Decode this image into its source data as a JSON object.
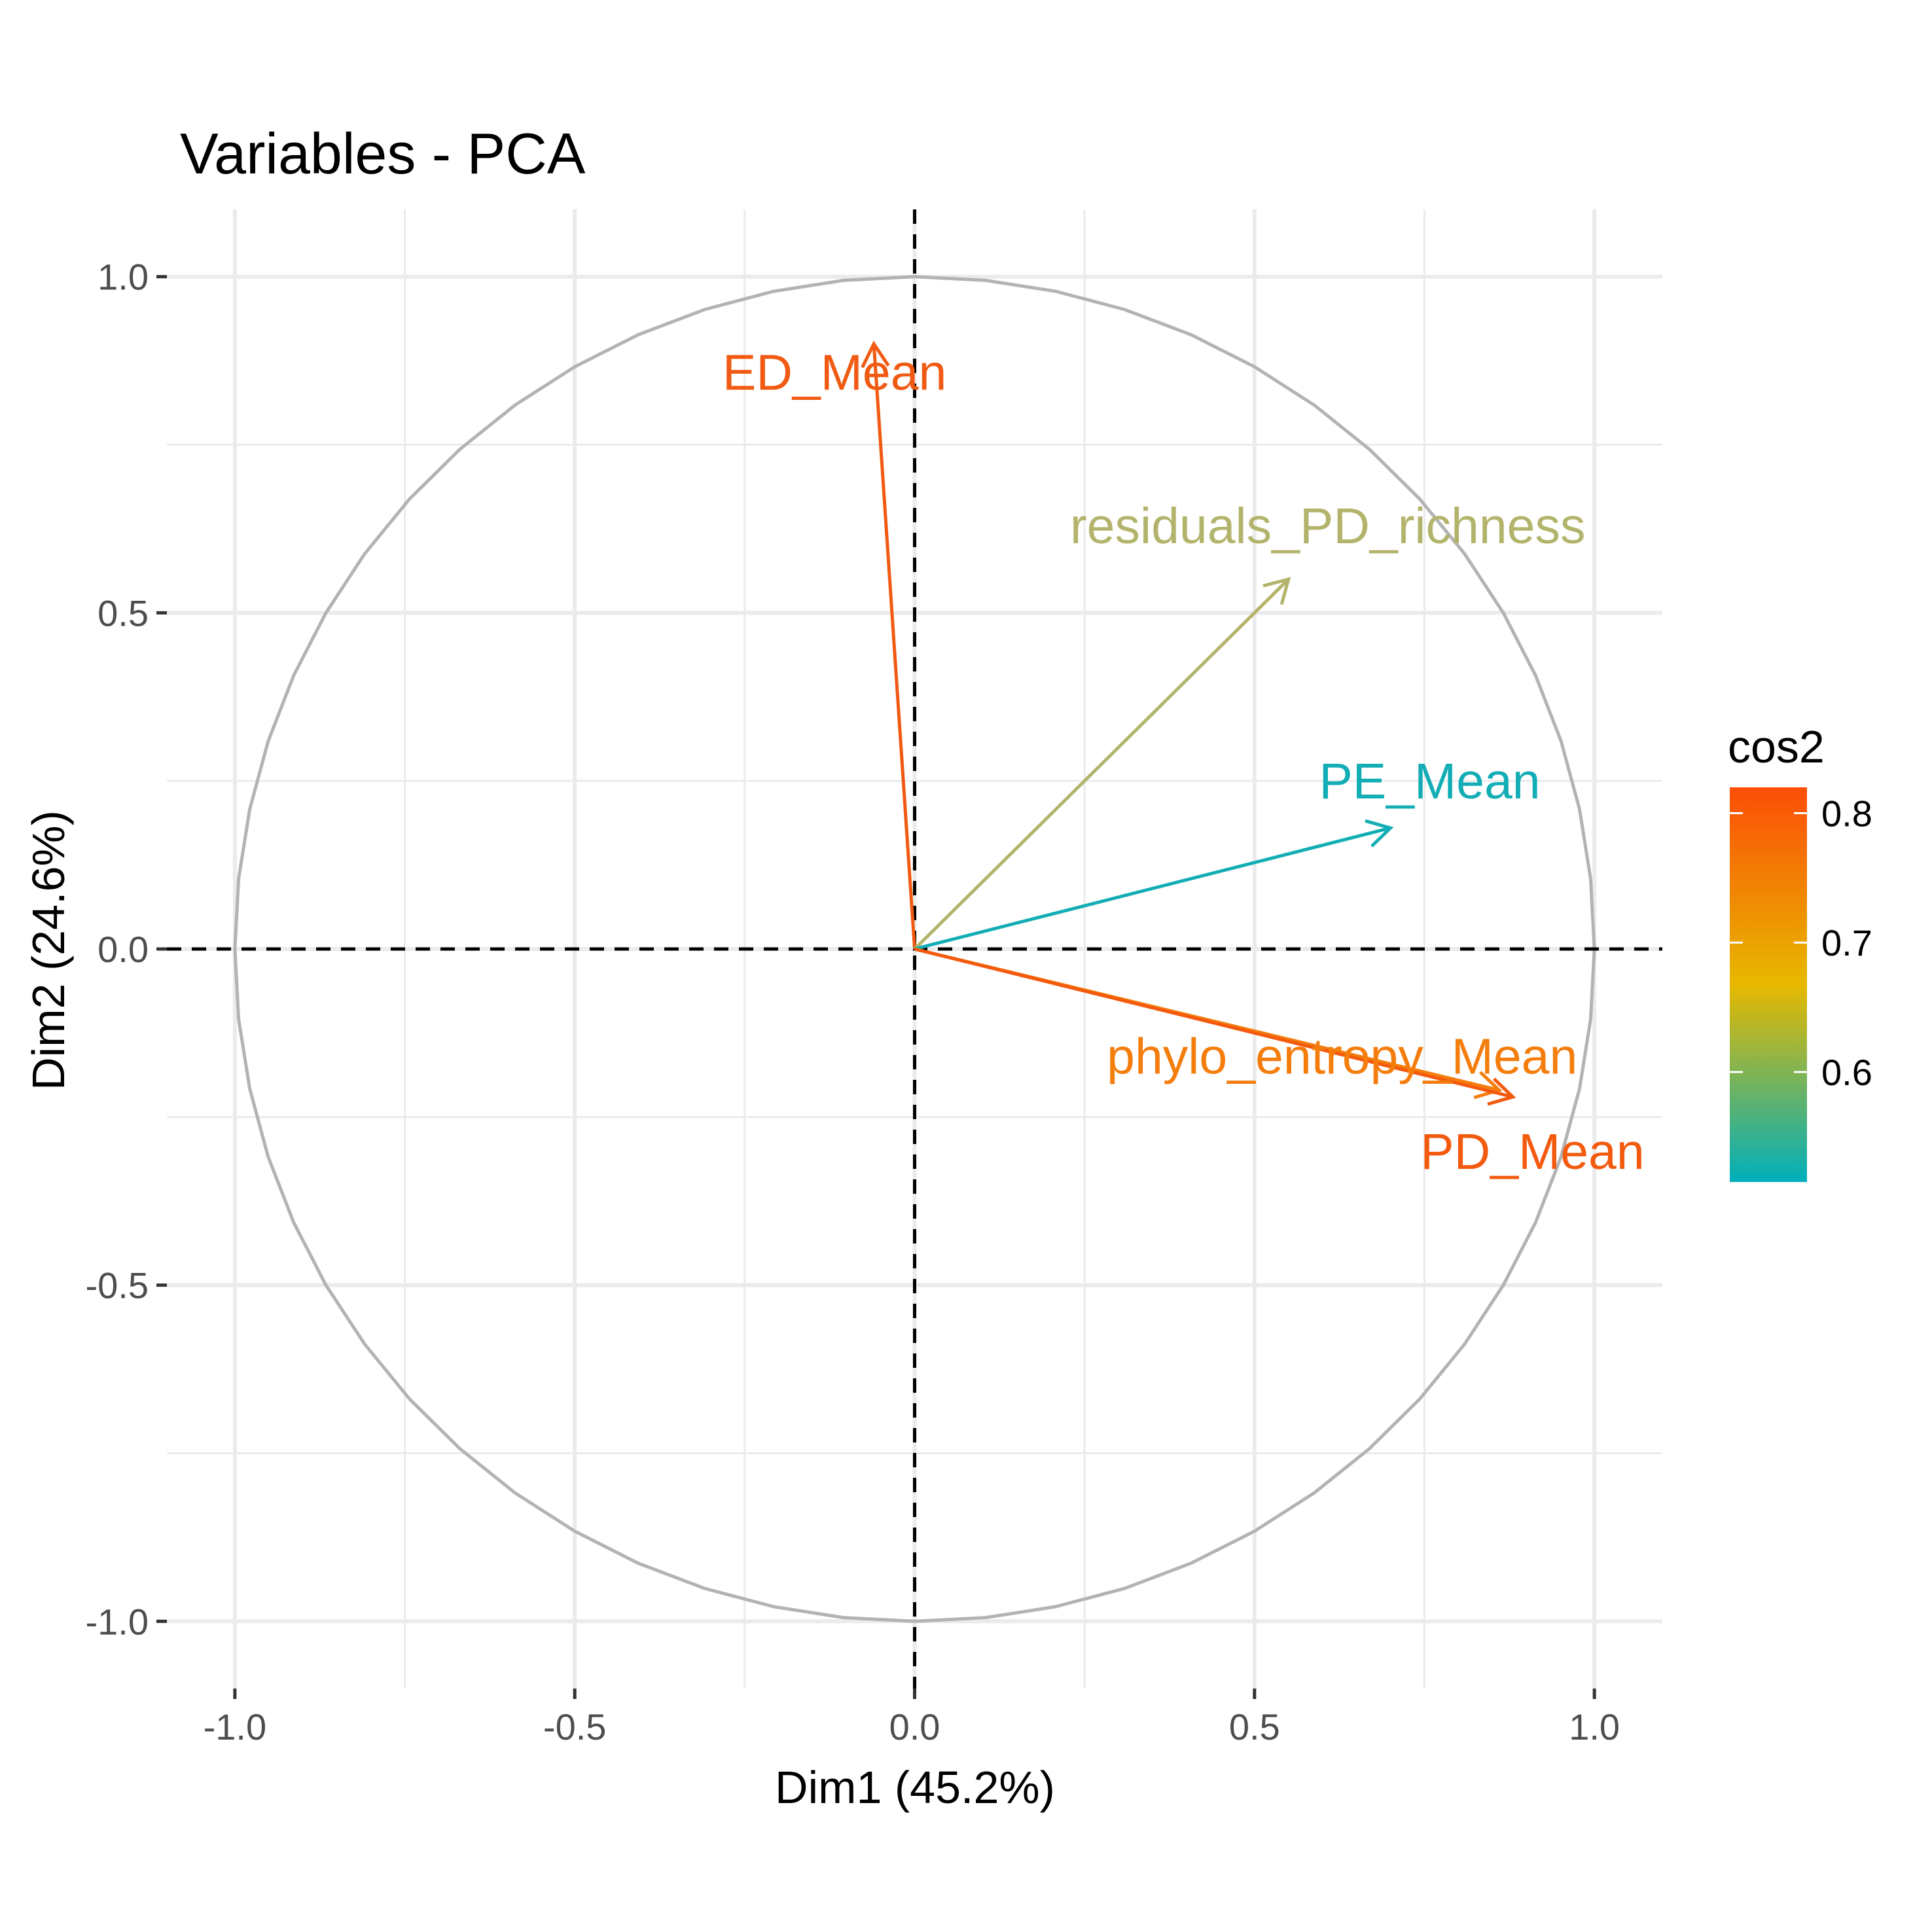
{
  "chart_data": {
    "type": "pca-variables",
    "title": "Variables - PCA",
    "xlabel": "Dim1 (45.2%)",
    "ylabel": "Dim2 (24.6%)",
    "xlim": [
      -1.1,
      1.1
    ],
    "ylim": [
      -1.1,
      1.1
    ],
    "x_ticks": [
      -1.0,
      -0.5,
      0.0,
      0.5,
      1.0
    ],
    "y_ticks": [
      -1.0,
      -0.5,
      0.0,
      0.5,
      1.0
    ],
    "x_tick_labels": [
      "-1.0",
      "-0.5",
      "0.0",
      "0.5",
      "1.0"
    ],
    "y_tick_labels": [
      "-1.0",
      "-0.5",
      "0.0",
      "0.5",
      "1.0"
    ],
    "grid": true,
    "unit_circle": true,
    "reference_lines": [
      0,
      0
    ],
    "variables": [
      {
        "name": "ED_Mean",
        "x": -0.06,
        "y": 0.9,
        "cos2": 0.81,
        "color": "#f15a12"
      },
      {
        "name": "residuals_PD_richness",
        "x": 0.55,
        "y": 0.55,
        "cos2": 0.6,
        "color": "#b3b46c"
      },
      {
        "name": "PE_Mean",
        "x": 0.7,
        "y": 0.18,
        "cos2": 0.52,
        "color": "#12adb5"
      },
      {
        "name": "phylo_entropy_Mean",
        "x": 0.86,
        "y": -0.21,
        "cos2": 0.78,
        "color": "#f47d0c"
      },
      {
        "name": "PD_Mean",
        "x": 0.88,
        "y": -0.22,
        "cos2": 0.82,
        "color": "#f35a0e"
      }
    ],
    "legend": {
      "title": "cos2",
      "placement": "right",
      "range": [
        0.515,
        0.82
      ],
      "ticks": [
        0.6,
        0.7,
        0.8
      ],
      "tick_labels": [
        "0.6",
        "0.7",
        "0.8"
      ],
      "colors": [
        "#00AFBB",
        "#E7B800",
        "#FC4E07"
      ]
    }
  }
}
